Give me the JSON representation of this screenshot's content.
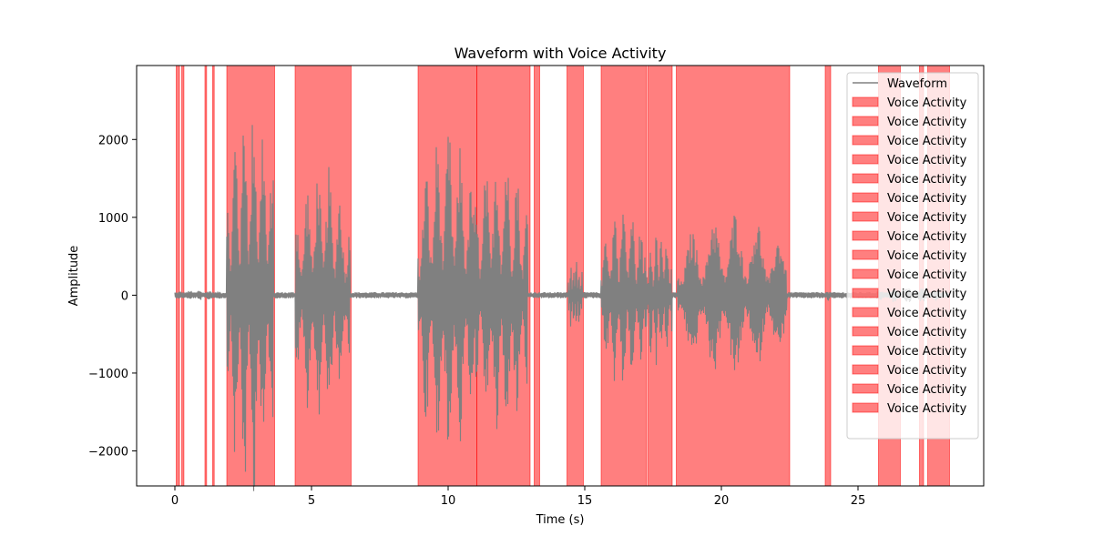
{
  "chart_data": {
    "type": "line",
    "title": "Waveform with Voice Activity",
    "xlabel": "Time (s)",
    "ylabel": "Amplitude",
    "xlim": [
      -1.4,
      29.6
    ],
    "ylim": [
      -2450,
      2950
    ],
    "x_ticks": [
      0,
      5,
      10,
      15,
      20,
      25
    ],
    "x_tick_labels": [
      "0",
      "5",
      "10",
      "15",
      "20",
      "25"
    ],
    "y_ticks": [
      -2000,
      -1000,
      0,
      1000,
      2000
    ],
    "y_tick_labels": [
      "−2000",
      "−1000",
      "0",
      "1000",
      "2000"
    ],
    "grid": false,
    "legend_position": "upper-right",
    "waveform": {
      "name": "Waveform",
      "color": "#808080",
      "segments": [
        {
          "start": 0.0,
          "end": 1.8,
          "amp": 70
        },
        {
          "start": 1.9,
          "end": 3.6,
          "amp": 2700
        },
        {
          "start": 4.4,
          "end": 6.4,
          "amp": 1700
        },
        {
          "start": 8.9,
          "end": 11.0,
          "amp": 2200
        },
        {
          "start": 11.0,
          "end": 12.9,
          "amp": 2000
        },
        {
          "start": 14.4,
          "end": 14.9,
          "amp": 550
        },
        {
          "start": 15.6,
          "end": 17.2,
          "amp": 1250
        },
        {
          "start": 17.2,
          "end": 18.2,
          "amp": 950
        },
        {
          "start": 18.4,
          "end": 22.4,
          "amp": 1100
        },
        {
          "start": 23.8,
          "end": 24.0,
          "amp": 80
        },
        {
          "start": 25.6,
          "end": 28.2,
          "amp": 100
        }
      ],
      "noise_amp": 40
    },
    "voice_activity": {
      "name": "Voice Activity",
      "color": "#ff0000",
      "alpha": 0.5,
      "regions": [
        [
          0.05,
          0.17
        ],
        [
          0.25,
          0.33
        ],
        [
          1.1,
          1.16
        ],
        [
          1.38,
          1.44
        ],
        [
          1.9,
          3.65
        ],
        [
          4.4,
          6.45
        ],
        [
          8.9,
          11.05
        ],
        [
          11.05,
          13.0
        ],
        [
          13.15,
          13.35
        ],
        [
          14.35,
          14.95
        ],
        [
          15.6,
          17.25
        ],
        [
          17.3,
          18.2
        ],
        [
          18.35,
          22.5
        ],
        [
          23.8,
          24.0
        ],
        [
          25.75,
          26.55
        ],
        [
          27.25,
          27.4
        ],
        [
          27.55,
          28.35
        ]
      ]
    },
    "legend": [
      "Waveform",
      "Voice Activity",
      "Voice Activity",
      "Voice Activity",
      "Voice Activity",
      "Voice Activity",
      "Voice Activity",
      "Voice Activity",
      "Voice Activity",
      "Voice Activity",
      "Voice Activity",
      "Voice Activity",
      "Voice Activity",
      "Voice Activity",
      "Voice Activity",
      "Voice Activity",
      "Voice Activity",
      "Voice Activity"
    ]
  }
}
